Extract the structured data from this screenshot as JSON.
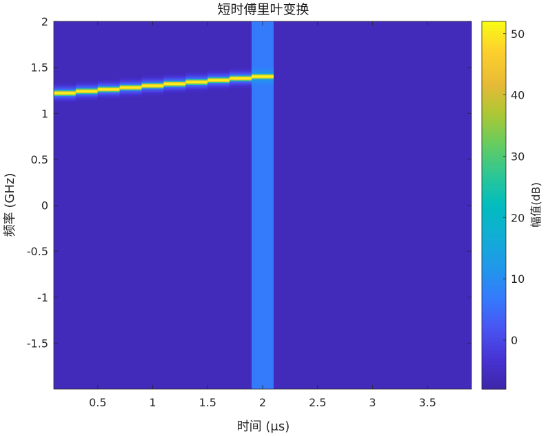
{
  "chart_data": {
    "type": "heatmap",
    "title": "短时傅里叶变换",
    "xlabel": "时间 (μs)",
    "ylabel": "频率 (GHz)",
    "colorbar_label": "幅值(dB)",
    "xlim": [
      0.1,
      3.9
    ],
    "ylim": [
      -2,
      2
    ],
    "x_ticks": [
      0.5,
      1,
      1.5,
      2,
      2.5,
      3,
      3.5
    ],
    "x_tick_labels": [
      "0.5",
      "1",
      "1.5",
      "2",
      "2.5",
      "3",
      "3.5"
    ],
    "y_ticks": [
      2,
      1.5,
      1,
      0.5,
      0,
      -0.5,
      -1,
      -1.5
    ],
    "y_tick_labels": [
      "2",
      "1.5",
      "1",
      "0.5",
      "0",
      "-0.5",
      "-1",
      "-1.5"
    ],
    "colorbar_ticks": [
      0,
      10,
      20,
      30,
      40,
      50
    ],
    "colorbar_tick_labels": [
      "0",
      "10",
      "20",
      "30",
      "40",
      "50"
    ],
    "clim": [
      -8,
      52
    ],
    "colormap": "parula",
    "background_db": -6,
    "ridge": {
      "segments": [
        {
          "t_start": 0.1,
          "t_end": 0.3,
          "freq_ghz": 1.22,
          "peak_db": 51
        },
        {
          "t_start": 0.3,
          "t_end": 0.5,
          "freq_ghz": 1.24,
          "peak_db": 51
        },
        {
          "t_start": 0.5,
          "t_end": 0.7,
          "freq_ghz": 1.26,
          "peak_db": 51
        },
        {
          "t_start": 0.7,
          "t_end": 0.9,
          "freq_ghz": 1.28,
          "peak_db": 51
        },
        {
          "t_start": 0.9,
          "t_end": 1.1,
          "freq_ghz": 1.3,
          "peak_db": 51
        },
        {
          "t_start": 1.1,
          "t_end": 1.3,
          "freq_ghz": 1.32,
          "peak_db": 51
        },
        {
          "t_start": 1.3,
          "t_end": 1.5,
          "freq_ghz": 1.34,
          "peak_db": 51
        },
        {
          "t_start": 1.5,
          "t_end": 1.7,
          "freq_ghz": 1.36,
          "peak_db": 51
        },
        {
          "t_start": 1.7,
          "t_end": 1.9,
          "freq_ghz": 1.38,
          "peak_db": 51
        },
        {
          "t_start": 1.9,
          "t_end": 2.1,
          "freq_ghz": 1.4,
          "peak_db": 52
        }
      ],
      "sidelobe_halfwidth_ghz": 0.12
    },
    "broadband_column": {
      "t_start": 1.9,
      "t_end": 2.1,
      "level_db": 7
    }
  }
}
